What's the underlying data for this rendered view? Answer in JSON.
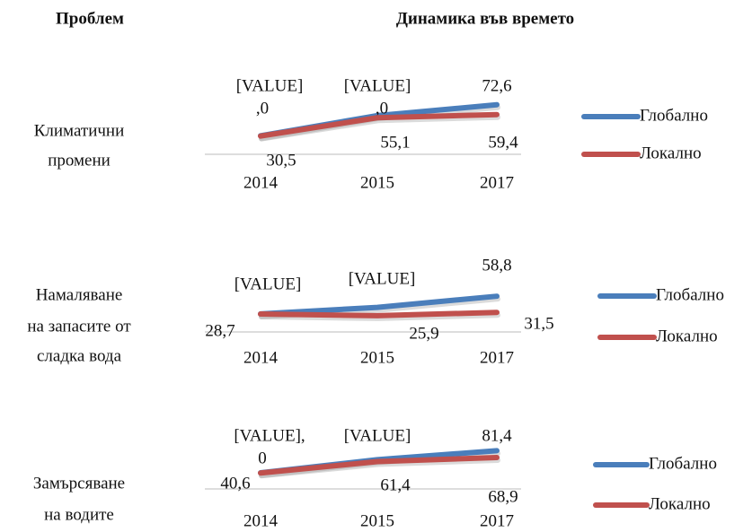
{
  "header": {
    "problem": "Проблем",
    "dynamics": "Динамика във времето"
  },
  "rows": [
    {
      "problem": [
        "Климатични",
        "промени"
      ],
      "chart": {
        "type": "line",
        "categories": [
          "2014",
          "2015",
          "2017"
        ],
        "series": [
          {
            "name": "Глобално",
            "color": "#4a7ebb",
            "values": [
              31,
              58,
              72.6
            ],
            "value_labels": [
              [
                "[VALUE]",
                ",0"
              ],
              [
                "[VALUE]",
                ",0"
              ],
              "72,6"
            ]
          },
          {
            "name": "Локално",
            "color": "#c0504d",
            "values": [
              30.5,
              55.1,
              59.4
            ],
            "value_labels": [
              "30,5",
              "55,1",
              "59,4"
            ]
          }
        ]
      }
    },
    {
      "problem": [
        "Намаляване",
        "на запасите от",
        "сладка вода"
      ],
      "chart": {
        "type": "line",
        "categories": [
          "2014",
          "2015",
          "2017"
        ],
        "series": [
          {
            "name": "Глобално",
            "color": "#4a7ebb",
            "values": [
              29,
              40,
              58.8
            ],
            "value_labels": [
              "[VALUE]",
              "[VALUE]",
              "58,8"
            ]
          },
          {
            "name": "Локално",
            "color": "#c0504d",
            "values": [
              28.7,
              25.9,
              31.5
            ],
            "value_labels": [
              "28,7",
              "25,9",
              "31,5"
            ]
          }
        ]
      }
    },
    {
      "problem": [
        "Замърсяване",
        "на водите"
      ],
      "chart": {
        "type": "line",
        "categories": [
          "2014",
          "2015",
          "2017"
        ],
        "series": [
          {
            "name": "Глобално",
            "color": "#4a7ebb",
            "values": [
              41,
              65,
              81.4
            ],
            "value_labels": [
              [
                "[VALUE],",
                "0"
              ],
              "[VALUE]",
              "81,4"
            ]
          },
          {
            "name": "Локално",
            "color": "#c0504d",
            "values": [
              40.6,
              61.4,
              68.9
            ],
            "value_labels": [
              "40,6",
              "61,4",
              "68,9"
            ]
          }
        ]
      }
    }
  ]
}
